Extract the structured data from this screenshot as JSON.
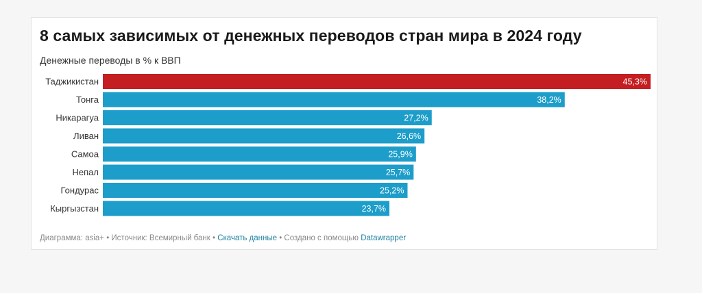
{
  "chart_data": {
    "type": "bar",
    "orientation": "horizontal",
    "title": "8 самых зависимых от денежных переводов стран мира в 2024 году",
    "subtitle": "Денежные переводы в % к ВВП",
    "categories": [
      "Таджикистан",
      "Тонга",
      "Никарагуа",
      "Ливан",
      "Самоа",
      "Непал",
      "Гондурас",
      "Кыргызстан"
    ],
    "values": [
      45.3,
      38.2,
      27.2,
      26.6,
      25.9,
      25.7,
      25.2,
      23.7
    ],
    "value_labels": [
      "45,3%",
      "38,2%",
      "27,2%",
      "26,6%",
      "25,9%",
      "25,7%",
      "25,2%",
      "23,7%"
    ],
    "xlim": [
      0,
      45.3
    ],
    "highlight_index": 0,
    "colors": {
      "highlight": "#c41e22",
      "default": "#1d9dca",
      "label_text": "#ffffff",
      "category_text": "#333333"
    },
    "grid": false,
    "legend": "none"
  },
  "footer": {
    "prefix": "Диаграмма: asia+ • Источник: Всемирный банк • ",
    "download_link": "Скачать данные",
    "middle": " • Создано с помощью ",
    "tool_link": "Datawrapper"
  }
}
